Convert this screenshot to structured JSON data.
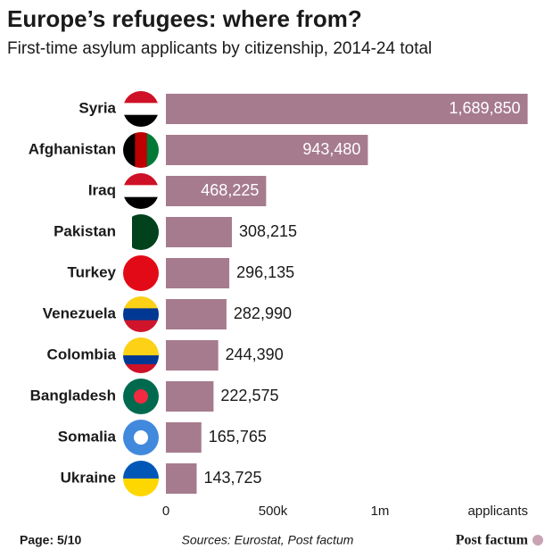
{
  "chart_data": {
    "type": "bar",
    "orientation": "horizontal",
    "title": "Europe’s refugees: where from?",
    "subtitle": "First-time asylum applicants by citizenship, 2014-24 total",
    "categories": [
      "Syria",
      "Afghanistan",
      "Iraq",
      "Pakistan",
      "Turkey",
      "Venezuela",
      "Colombia",
      "Bangladesh",
      "Somalia",
      "Ukraine"
    ],
    "values": [
      1689850,
      943480,
      468225,
      308215,
      296135,
      282990,
      244390,
      222575,
      165765,
      143725
    ],
    "value_labels": [
      "1,689,850",
      "943,480",
      "468,225",
      "308,215",
      "296,135",
      "282,990",
      "244,390",
      "222,575",
      "165,765",
      "143,725"
    ],
    "color": "#a67b8e",
    "xlim": [
      0,
      1700000
    ],
    "xticks": [
      0,
      {
        "value": 500000,
        "label": "500k"
      },
      {
        "value": 1000000,
        "label": "1m"
      }
    ],
    "xlabel": "applicants",
    "page": "Page: 5/10",
    "source": "Sources: Eurostat, Post factum",
    "brand": "Post factum"
  }
}
